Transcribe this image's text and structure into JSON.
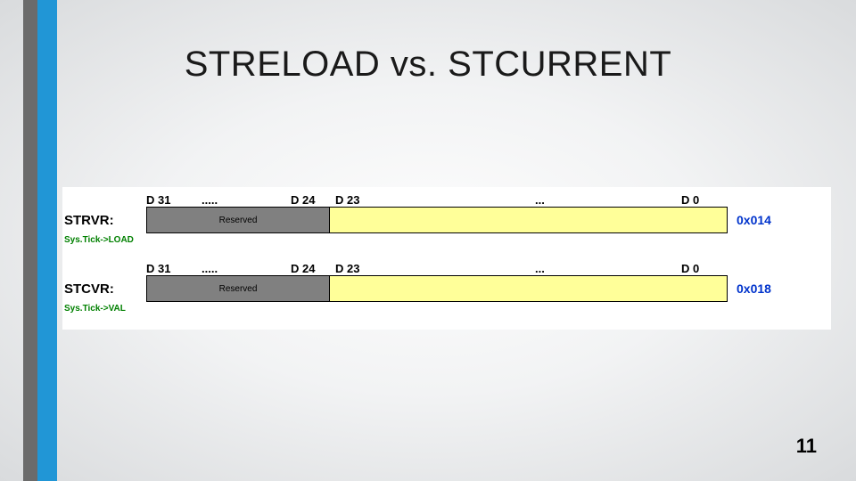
{
  "accent": {
    "bar1_color": "#6b6b6b",
    "bar2_color": "#2196d6"
  },
  "title": "STRELOAD vs. STCURRENT",
  "page_number": "11",
  "colors": {
    "reserved_bg": "#808080",
    "data_bg": "#ffff99",
    "address_text": "#0033cc",
    "systick_text": "#008000",
    "title_text": "#1a1a1a"
  },
  "registers": [
    {
      "name": "STRVR:",
      "address": "0x014",
      "systick": "Sys.Tick->LOAD",
      "bits": {
        "d31": "D 31",
        "dots1": ".....",
        "d24": "D 24",
        "d23": "D 23",
        "dots2": "...",
        "d0": "D 0"
      },
      "reserved_label": "Reserved"
    },
    {
      "name": "STCVR:",
      "address": "0x018",
      "systick": "Sys.Tick->VAL",
      "bits": {
        "d31": "D 31",
        "dots1": ".....",
        "d24": "D 24",
        "d23": "D 23",
        "dots2": "...",
        "d0": "D 0"
      },
      "reserved_label": "Reserved"
    }
  ]
}
